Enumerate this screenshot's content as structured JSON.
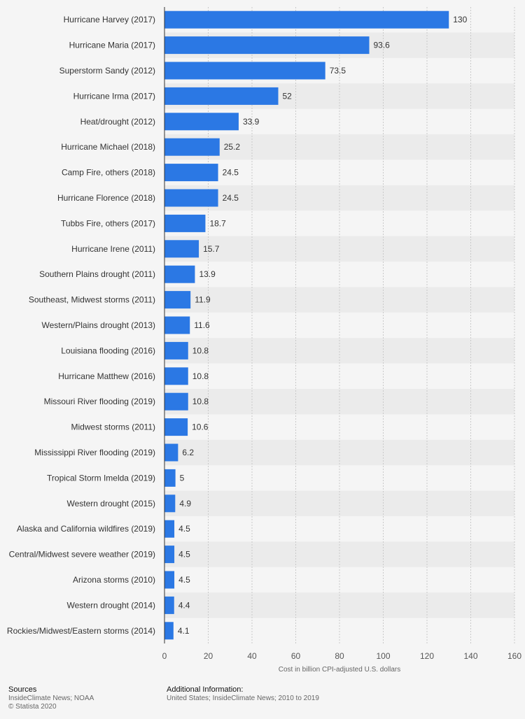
{
  "chart_data": {
    "type": "bar",
    "orientation": "horizontal",
    "xlabel": "Cost in billion CPI-adjusted U.S. dollars",
    "xlim": [
      0,
      160
    ],
    "ticks": [
      0,
      20,
      40,
      60,
      80,
      100,
      120,
      140,
      160
    ],
    "grid": true,
    "bar_color": "#2b78e4",
    "categories": [
      "Hurricane Harvey (2017)",
      "Hurricane Maria (2017)",
      "Superstorm Sandy (2012)",
      "Hurricane Irma (2017)",
      "Heat/drought (2012)",
      "Hurricane Michael (2018)",
      "Camp Fire, others (2018)",
      "Hurricane Florence (2018)",
      "Tubbs Fire, others (2017)",
      "Hurricane Irene (2011)",
      "Southern Plains drought (2011)",
      "Southeast, Midwest storms (2011)",
      "Western/Plains drought (2013)",
      "Louisiana flooding (2016)",
      "Hurricane Matthew (2016)",
      "Missouri River flooding (2019)",
      "Midwest storms (2011)",
      "Mississippi River flooding (2019)",
      "Tropical Storm Imelda (2019)",
      "Western drought (2015)",
      "Alaska and California wildfires (2019)",
      "Central/Midwest severe weather (2019)",
      "Arizona storms (2010)",
      "Western drought (2014)",
      "Rockies/Midwest/Eastern storms (2014)"
    ],
    "values": [
      130,
      93.6,
      73.5,
      52,
      33.9,
      25.2,
      24.5,
      24.5,
      18.7,
      15.7,
      13.9,
      11.9,
      11.6,
      10.8,
      10.8,
      10.8,
      10.6,
      6.2,
      5,
      4.9,
      4.5,
      4.5,
      4.5,
      4.4,
      4.1
    ]
  },
  "footer": {
    "sources_heading": "Sources",
    "sources_text": "InsideClimate News; NOAA",
    "copyright": "© Statista 2020",
    "additional_heading": "Additional Information:",
    "additional_text": "United States; InsideClimate News; 2010 to 2019"
  }
}
